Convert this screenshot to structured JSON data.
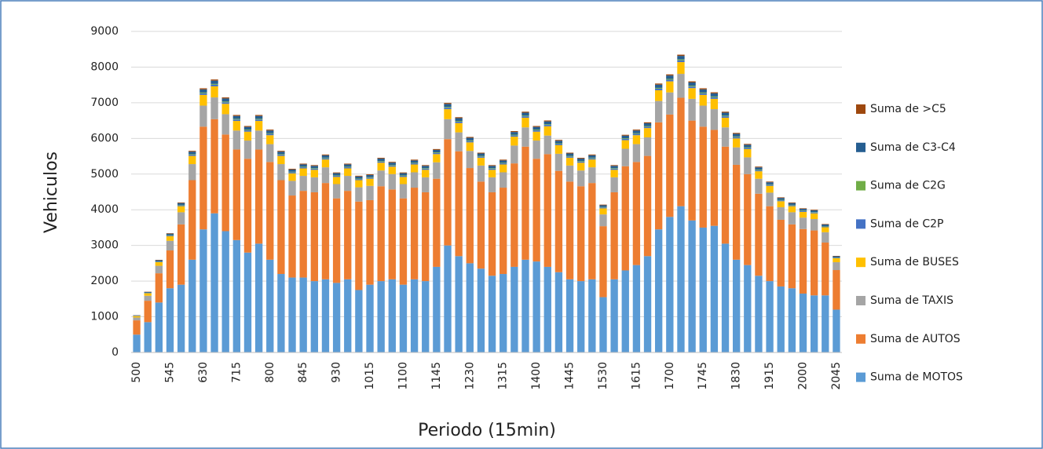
{
  "chart_data": {
    "type": "bar",
    "stacked": true,
    "x_label": "Periodo (15min)",
    "y_label": "Vehiculos",
    "categories": [
      "500",
      null,
      null,
      "545",
      null,
      null,
      "630",
      null,
      null,
      "715",
      null,
      null,
      "800",
      null,
      null,
      "845",
      null,
      null,
      "930",
      null,
      null,
      "1015",
      null,
      null,
      "1100",
      null,
      null,
      "1145",
      null,
      null,
      "1230",
      null,
      null,
      "1315",
      null,
      null,
      "1400",
      null,
      null,
      "1445",
      null,
      null,
      "1530",
      null,
      null,
      "1615",
      null,
      null,
      "1700",
      null,
      null,
      "1745",
      null,
      null,
      "1830",
      null,
      null,
      "1915",
      null,
      null,
      "2000",
      null,
      null,
      "2045"
    ],
    "ylim": [
      0,
      9000
    ],
    "yticks": [
      0,
      1000,
      2000,
      3000,
      4000,
      5000,
      6000,
      7000,
      8000,
      9000
    ],
    "grid": true,
    "legend": "right",
    "series": [
      {
        "name": "Suma de MOTOS",
        "color": "#5b9bd5",
        "values": [
          500,
          850,
          1400,
          1800,
          1900,
          2600,
          3450,
          3900,
          3400,
          3150,
          2800,
          3050,
          2600,
          2200,
          2100,
          2100,
          2000,
          2050,
          1950,
          2050,
          1750,
          1900,
          2000,
          2050,
          1900,
          2050,
          2000,
          2400,
          3000,
          2700,
          2500,
          2350,
          2150,
          2200,
          2400,
          2600,
          2550,
          2400,
          2250,
          2050,
          2000,
          2050,
          1550,
          2050,
          2300,
          2450,
          2700,
          3450,
          3800,
          4100,
          3700,
          3500,
          3550,
          3050,
          2600,
          2450,
          2150,
          2000,
          1850,
          1800,
          1650,
          1600,
          1600,
          1200
        ]
      },
      {
        "name": "Suma de AUTOS",
        "color": "#ed7d31",
        "values": [
          400,
          600,
          820,
          1060,
          1690,
          2230,
          2880,
          2640,
          2710,
          2540,
          2630,
          2640,
          2740,
          2630,
          2300,
          2430,
          2490,
          2700,
          2370,
          2480,
          2480,
          2370,
          2660,
          2520,
          2420,
          2570,
          2490,
          2470,
          2980,
          2940,
          2670,
          2440,
          2340,
          2420,
          2900,
          3170,
          2880,
          3160,
          2840,
          2740,
          2660,
          2700,
          1990,
          2440,
          2920,
          2890,
          2810,
          3000,
          2870,
          3040,
          2800,
          2830,
          2690,
          2720,
          2660,
          2550,
          2300,
          2100,
          1870,
          1790,
          1810,
          1820,
          1480,
          1110
        ]
      },
      {
        "name": "Suma de TAXIS",
        "color": "#a5a5a5",
        "values": [
          80,
          140,
          210,
          270,
          340,
          450,
          590,
          610,
          570,
          530,
          510,
          530,
          500,
          450,
          410,
          420,
          420,
          440,
          400,
          420,
          400,
          400,
          440,
          430,
          400,
          430,
          420,
          460,
          560,
          530,
          480,
          450,
          420,
          430,
          500,
          540,
          510,
          520,
          480,
          450,
          440,
          440,
          330,
          420,
          490,
          500,
          520,
          600,
          620,
          670,
          610,
          590,
          580,
          540,
          490,
          470,
          420,
          380,
          350,
          340,
          320,
          320,
          290,
          220
        ]
      },
      {
        "name": "Suma de BUSES",
        "color": "#ffc000",
        "values": [
          40,
          70,
          100,
          130,
          170,
          230,
          300,
          310,
          290,
          270,
          250,
          270,
          250,
          230,
          210,
          210,
          210,
          220,
          200,
          210,
          200,
          200,
          220,
          210,
          200,
          220,
          210,
          230,
          280,
          260,
          240,
          220,
          210,
          220,
          250,
          270,
          250,
          260,
          240,
          220,
          220,
          220,
          170,
          210,
          240,
          250,
          260,
          300,
          310,
          330,
          300,
          300,
          290,
          270,
          250,
          230,
          210,
          190,
          170,
          170,
          160,
          160,
          140,
          110
        ]
      },
      {
        "name": "Suma de C2P",
        "color": "#4472c4",
        "values": [
          6,
          10,
          16,
          20,
          25,
          34,
          44,
          46,
          43,
          40,
          38,
          40,
          38,
          34,
          31,
          32,
          32,
          33,
          30,
          32,
          30,
          30,
          33,
          32,
          30,
          32,
          32,
          34,
          42,
          40,
          36,
          34,
          32,
          32,
          37,
          41,
          38,
          39,
          36,
          34,
          33,
          33,
          25,
          32,
          37,
          38,
          39,
          45,
          47,
          50,
          46,
          44,
          44,
          41,
          37,
          35,
          31,
          29,
          26,
          25,
          24,
          24,
          22,
          16
        ]
      },
      {
        "name": "Suma de C2G",
        "color": "#70ad47",
        "values": [
          3,
          5,
          8,
          10,
          13,
          17,
          22,
          23,
          21,
          20,
          19,
          20,
          19,
          17,
          15,
          16,
          16,
          17,
          15,
          16,
          15,
          15,
          16,
          16,
          15,
          16,
          16,
          17,
          21,
          20,
          18,
          17,
          16,
          16,
          19,
          20,
          19,
          20,
          18,
          17,
          16,
          17,
          12,
          16,
          18,
          19,
          19,
          23,
          23,
          25,
          23,
          22,
          22,
          20,
          18,
          18,
          16,
          14,
          13,
          13,
          12,
          12,
          11,
          8
        ]
      },
      {
        "name": "Suma de C3-C4",
        "color": "#255e91",
        "values": [
          13,
          20,
          31,
          40,
          50,
          68,
          89,
          92,
          86,
          80,
          76,
          80,
          75,
          68,
          62,
          64,
          63,
          67,
          61,
          64,
          59,
          60,
          65,
          64,
          61,
          65,
          63,
          68,
          84,
          79,
          73,
          67,
          63,
          65,
          74,
          81,
          76,
          78,
          71,
          67,
          65,
          67,
          50,
          63,
          73,
          75,
          77,
          91,
          94,
          100,
          91,
          89,
          88,
          81,
          74,
          70,
          62,
          58,
          52,
          50,
          49,
          48,
          43,
          32
        ]
      },
      {
        "name": "Suma de >C5",
        "color": "#9e480e",
        "values": [
          4,
          7,
          10,
          13,
          17,
          23,
          30,
          31,
          29,
          27,
          25,
          27,
          25,
          23,
          21,
          21,
          21,
          22,
          20,
          21,
          20,
          20,
          22,
          21,
          20,
          22,
          21,
          23,
          28,
          26,
          24,
          22,
          21,
          22,
          25,
          27,
          25,
          26,
          24,
          22,
          22,
          22,
          17,
          21,
          24,
          25,
          26,
          30,
          31,
          33,
          30,
          30,
          29,
          27,
          25,
          23,
          21,
          19,
          17,
          17,
          16,
          16,
          14,
          11
        ]
      }
    ]
  }
}
